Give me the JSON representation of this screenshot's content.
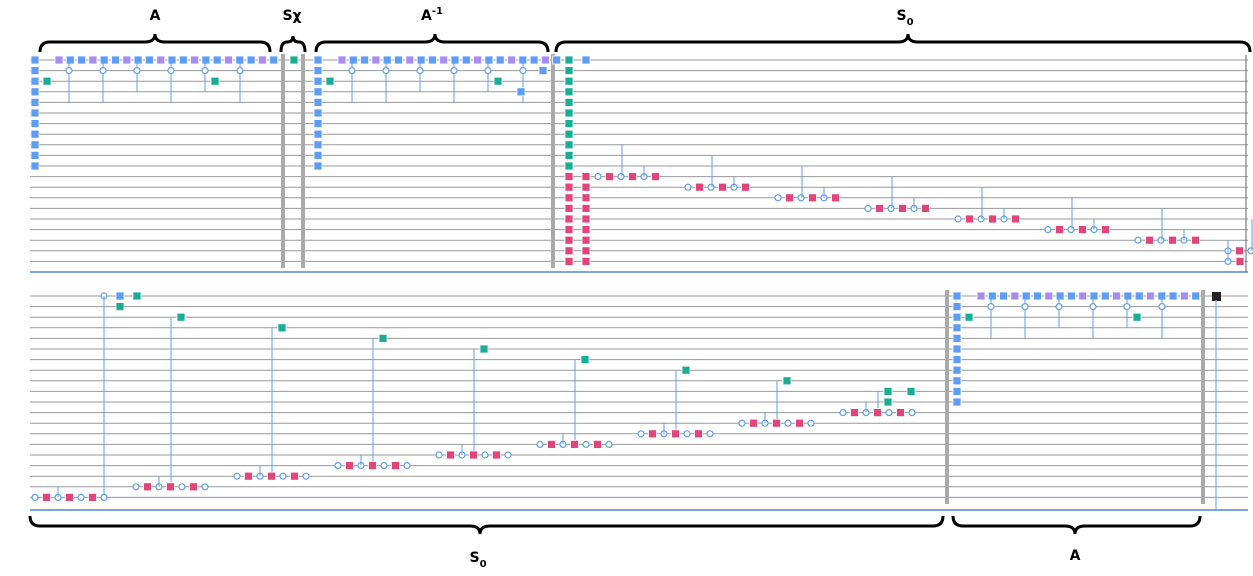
{
  "top_braces": [
    {
      "label": "A"
    },
    {
      "label": "Sχ"
    },
    {
      "label": "A",
      "sup": "-1"
    },
    {
      "label": "S",
      "sub": "0"
    }
  ],
  "bottom_braces": [
    {
      "label": "S",
      "sub": "0"
    },
    {
      "label": "A"
    }
  ]
}
